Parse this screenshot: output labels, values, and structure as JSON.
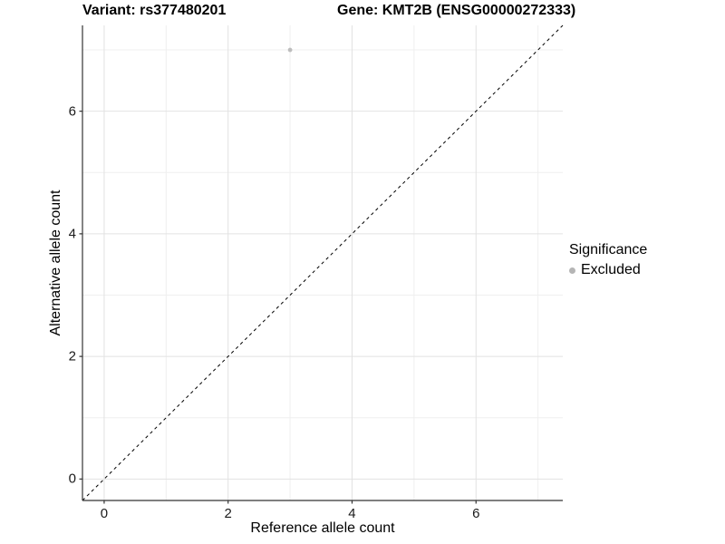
{
  "titles": {
    "variant": "Variant: rs377480201",
    "gene": "Gene: KMT2B (ENSG00000272333)"
  },
  "chart_data": {
    "type": "scatter",
    "title_left": "Variant: rs377480201",
    "title_right": "Gene: KMT2B (ENSG00000272333)",
    "xlabel": "Reference allele count",
    "ylabel": "Alternative allele count",
    "xlim": [
      -0.35,
      7.4
    ],
    "ylim": [
      -0.35,
      7.4
    ],
    "x_major_ticks": [
      0,
      2,
      4,
      6
    ],
    "y_major_ticks": [
      0,
      2,
      4,
      6
    ],
    "x_minor_ticks": [
      1,
      3,
      5,
      7
    ],
    "y_minor_ticks": [
      1,
      3,
      5,
      7
    ],
    "grid": true,
    "reference_line": {
      "type": "identity",
      "from": [
        -0.35,
        -0.35
      ],
      "to": [
        7.4,
        7.4
      ],
      "style": "dashed",
      "color": "#000000"
    },
    "series": [
      {
        "name": "Excluded",
        "color": "#bdbdbd",
        "points": [
          {
            "x": 3,
            "y": 7
          }
        ]
      }
    ],
    "legend": {
      "position": "right",
      "title": "Significance",
      "items": [
        {
          "label": "Excluded",
          "color": "#b5b5b5"
        }
      ]
    }
  },
  "colors": {
    "grid_major": "#e2e2e2",
    "grid_minor": "#efefef",
    "axis_line": "#333333",
    "tick_text": "#1a1a1a",
    "point": "#bdbdbd"
  }
}
